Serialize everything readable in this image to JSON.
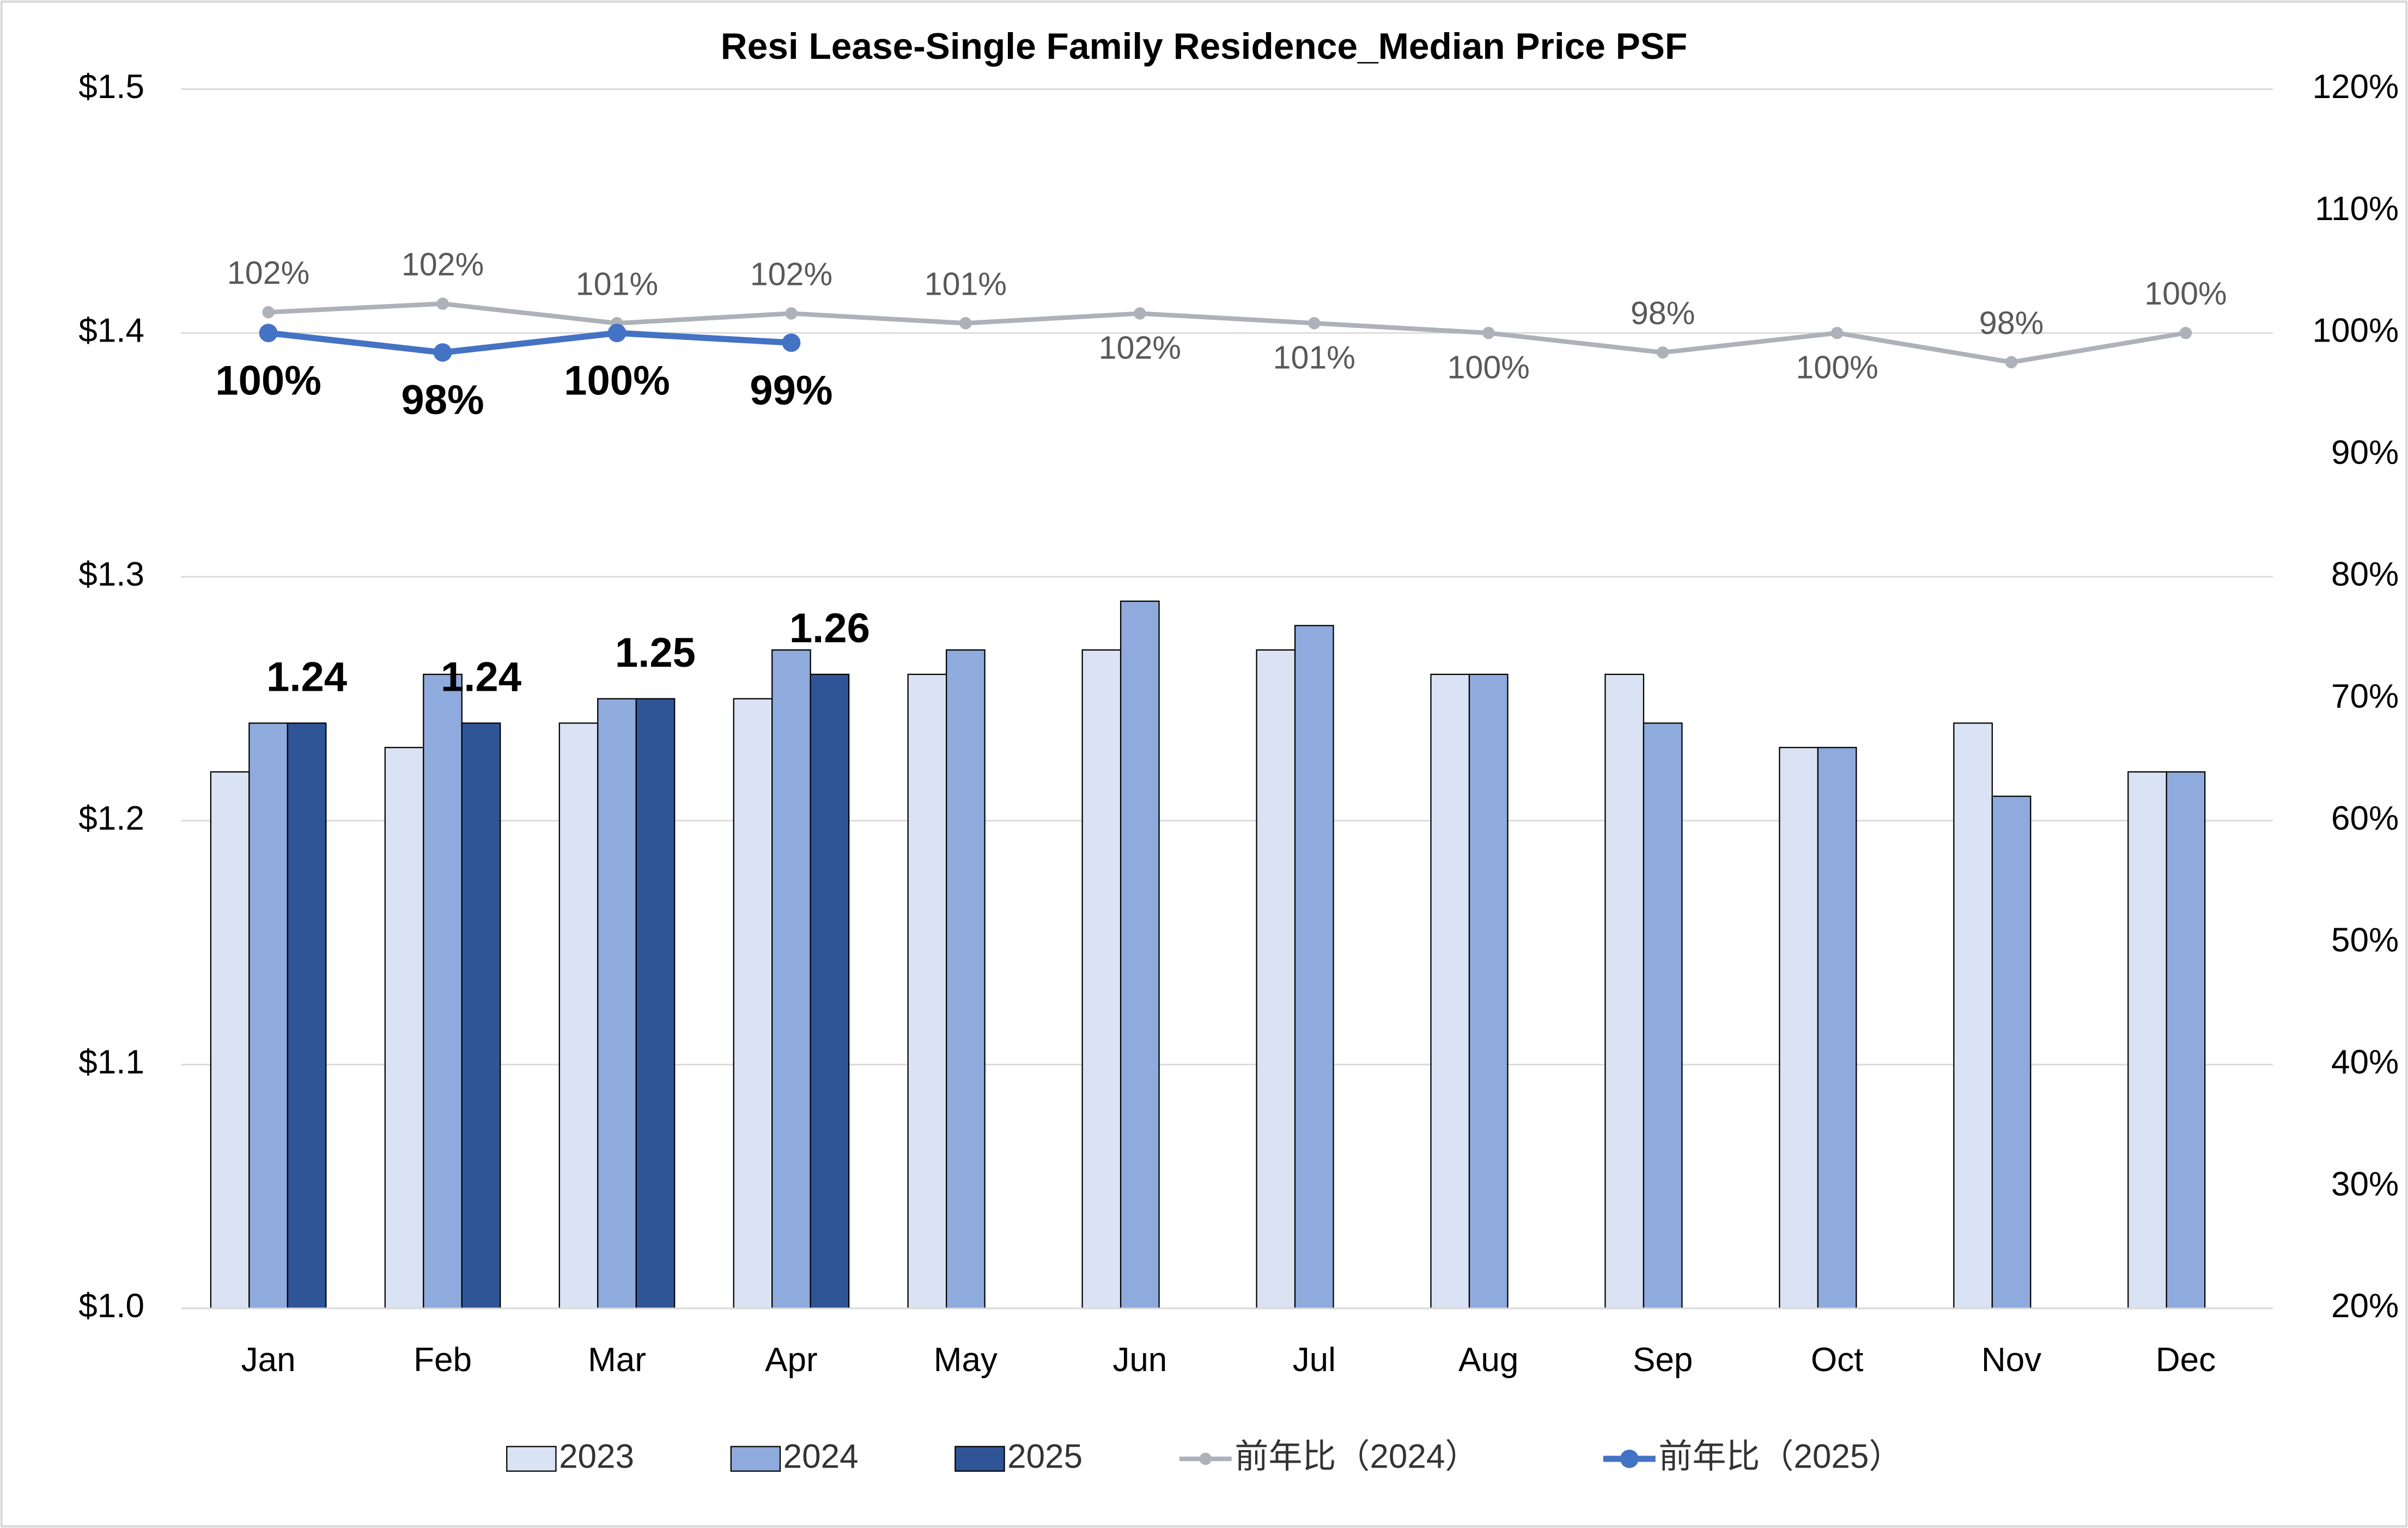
{
  "chart_data": {
    "type": "bar-line",
    "title": "Resi Lease-Single Family Residence_Median Price PSF",
    "categories": [
      "Jan",
      "Feb",
      "Mar",
      "Apr",
      "May",
      "Jun",
      "Jul",
      "Aug",
      "Sep",
      "Oct",
      "Nov",
      "Dec"
    ],
    "ylim": [
      1.0,
      1.5
    ],
    "yticks": [
      {
        "value": 1.0,
        "label": "$1.0"
      },
      {
        "value": 1.1,
        "label": "$1.1"
      },
      {
        "value": 1.2,
        "label": "$1.2"
      },
      {
        "value": 1.3,
        "label": "$1.3"
      },
      {
        "value": 1.4,
        "label": "$1.4"
      },
      {
        "value": 1.5,
        "label": "$1.5"
      }
    ],
    "y2lim": [
      20,
      120
    ],
    "y2ticks": [
      {
        "value": 20,
        "label": "20%"
      },
      {
        "value": 30,
        "label": "30%"
      },
      {
        "value": 40,
        "label": "40%"
      },
      {
        "value": 50,
        "label": "50%"
      },
      {
        "value": 60,
        "label": "60%"
      },
      {
        "value": 70,
        "label": "70%"
      },
      {
        "value": 80,
        "label": "80%"
      },
      {
        "value": 90,
        "label": "90%"
      },
      {
        "value": 100,
        "label": "100%"
      },
      {
        "value": 110,
        "label": "110%"
      },
      {
        "value": 120,
        "label": "120%"
      }
    ],
    "grid": true,
    "legend": "bottom",
    "series": [
      {
        "name": "2023",
        "type": "bar",
        "color": "#dae3f3",
        "values": [
          1.22,
          1.23,
          1.24,
          1.25,
          1.26,
          1.27,
          1.27,
          1.26,
          1.26,
          1.23,
          1.24,
          1.22
        ]
      },
      {
        "name": "2024",
        "type": "bar",
        "color": "#8faadc",
        "values": [
          1.24,
          1.26,
          1.25,
          1.27,
          1.27,
          1.29,
          1.28,
          1.26,
          1.24,
          1.23,
          1.21,
          1.22
        ]
      },
      {
        "name": "2025",
        "type": "bar",
        "color": "#2f5597",
        "values": [
          1.24,
          1.24,
          1.25,
          1.26,
          null,
          null,
          null,
          null,
          null,
          null,
          null,
          null
        ]
      },
      {
        "name": "前年比（2024）",
        "type": "line",
        "axis": "y2",
        "color": "#adb1b8",
        "values": [
          101.7,
          102.4,
          100.8,
          101.6,
          100.8,
          101.6,
          100.8,
          100,
          98.4,
          100,
          97.6,
          100
        ],
        "value_labels": [
          "102%",
          "102%",
          "101%",
          "102%",
          "101%",
          "102%",
          "101%",
          "100%",
          "98%",
          "100%",
          "98%",
          "100%"
        ]
      },
      {
        "name": "前年比（2025）",
        "type": "line",
        "axis": "y2",
        "color": "#4472c4",
        "values": [
          100,
          98.4,
          100,
          99.2,
          null,
          null,
          null,
          null,
          null,
          null,
          null,
          null
        ],
        "value_labels": [
          "100%",
          "98%",
          "100%",
          "99%",
          null,
          null,
          null,
          null,
          null,
          null,
          null,
          null
        ]
      }
    ]
  }
}
